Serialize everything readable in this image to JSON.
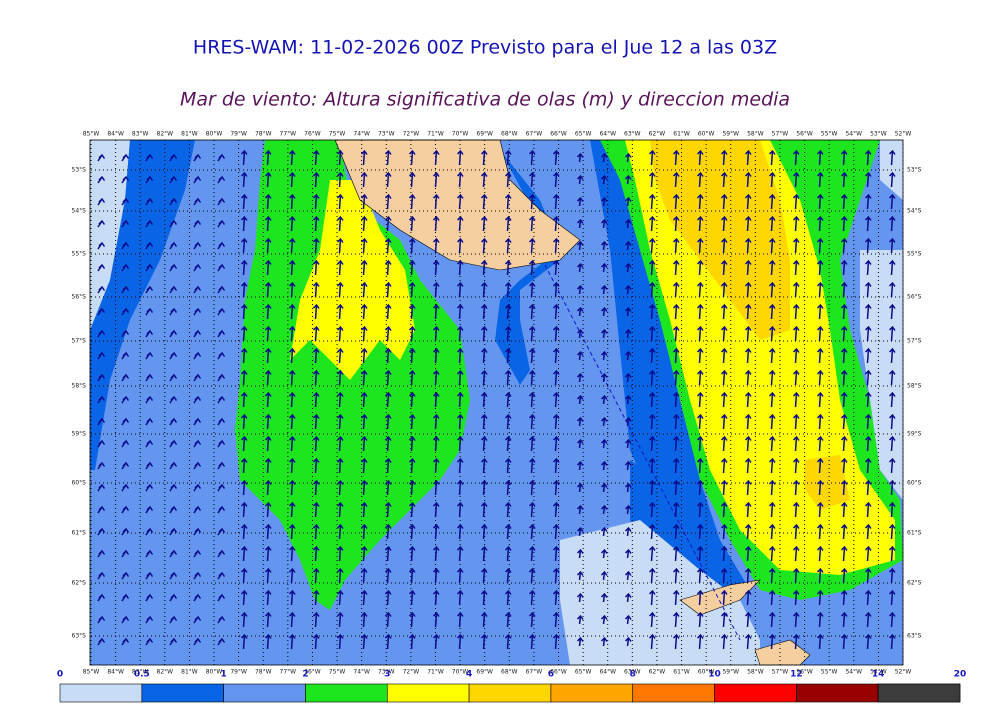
{
  "header": {
    "title": "HRES-WAM: 11-02-2026 00Z Previsto para el Jue 12 a las 03Z",
    "subtitle": "Mar de viento: Altura significativa de olas (m) y direccion media"
  },
  "map": {
    "longitude_labels": [
      "85°W",
      "84°W",
      "83°W",
      "82°W",
      "81°W",
      "80°W",
      "79°W",
      "78°W",
      "77°W",
      "76°W",
      "75°W",
      "74°W",
      "73°W",
      "72°W",
      "71°W",
      "70°W",
      "69°W",
      "68°W",
      "67°W",
      "66°W",
      "65°W",
      "64°W",
      "63°W",
      "62°W",
      "61°W",
      "60°W",
      "59°W",
      "58°W",
      "57°W",
      "56°W",
      "55°W",
      "54°W",
      "53°W",
      "52°W"
    ],
    "latitude_labels": [
      "53°S",
      "54°S",
      "55°S",
      "56°S",
      "57°S",
      "58°S",
      "59°S",
      "60°S",
      "61°S",
      "62°S",
      "63°S"
    ]
  },
  "legend": {
    "labels": [
      0,
      0.5,
      1,
      2,
      3,
      4,
      6,
      8,
      10,
      12,
      14,
      20
    ],
    "colors": [
      "#c8dcf5",
      "#0a64e6",
      "#6496f0",
      "#1ee61e",
      "#ffff00",
      "#ffd700",
      "#ffa500",
      "#ff7800",
      "#ff0000",
      "#960000",
      "#5a1414"
    ],
    "last_color": "#3c3c3c"
  }
}
